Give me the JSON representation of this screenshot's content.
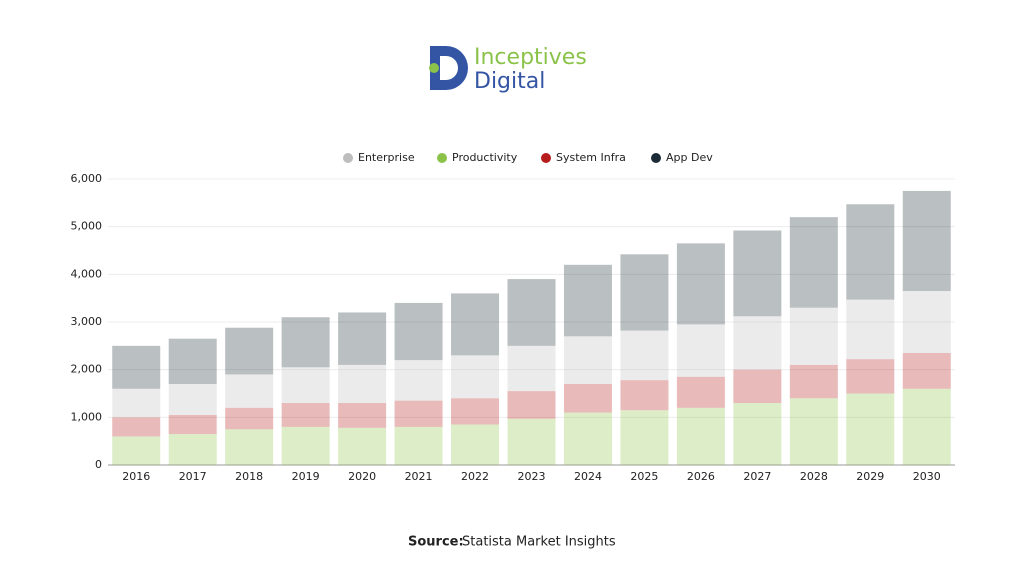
{
  "logo": {
    "line1": "Inceptives",
    "line2": "Digital"
  },
  "source": {
    "label": "Source:",
    "text": "Statista Market Insights"
  },
  "chart_data": {
    "type": "stacked_bar",
    "categories": [
      "2016",
      "2017",
      "2018",
      "2019",
      "2020",
      "2021",
      "2022",
      "2023",
      "2024",
      "2025",
      "2026",
      "2027",
      "2028",
      "2029",
      "2030"
    ],
    "series": [
      {
        "name": "Productivity",
        "color": "#8bc34a",
        "values": [
          600,
          650,
          750,
          800,
          780,
          800,
          850,
          970,
          1100,
          1150,
          1200,
          1300,
          1400,
          1500,
          1600
        ]
      },
      {
        "name": "System Infra",
        "color": "#b71c1c",
        "values": [
          400,
          400,
          450,
          500,
          520,
          550,
          550,
          580,
          600,
          630,
          650,
          700,
          700,
          720,
          750
        ]
      },
      {
        "name": "Enterprise",
        "color": "#bdbdbd",
        "values": [
          600,
          650,
          700,
          750,
          800,
          850,
          900,
          950,
          1000,
          1040,
          1100,
          1120,
          1200,
          1250,
          1300
        ]
      },
      {
        "name": "App Dev",
        "color": "#1c2b36",
        "values": [
          900,
          950,
          980,
          1050,
          1100,
          1200,
          1300,
          1400,
          1500,
          1600,
          1700,
          1800,
          1900,
          2000,
          2100
        ]
      }
    ],
    "ylim": [
      0,
      6000
    ],
    "yticks": [
      0,
      {
        "value": 1000,
        "label": "1,000"
      },
      {
        "value": 2000,
        "label": "2,000"
      },
      {
        "value": 3000,
        "label": "3,000"
      },
      {
        "value": 4000,
        "label": "4,000"
      },
      {
        "value": 5000,
        "label": "5,000"
      },
      {
        "value": 6000,
        "label": "6,000"
      }
    ],
    "grid": true,
    "legend": "top"
  }
}
